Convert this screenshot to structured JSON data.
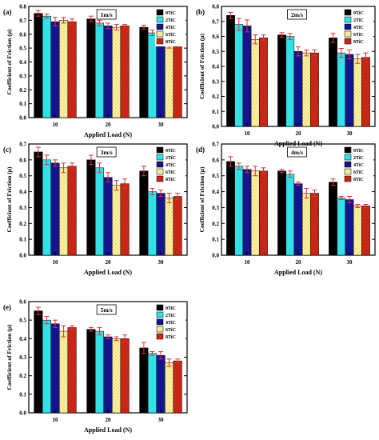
{
  "chart_data": [
    {
      "type": "bar",
      "panel_label": "(a)",
      "speed_label": "1m/s",
      "categories": [
        "10",
        "20",
        "30"
      ],
      "xlabel": "Applied Load (N)",
      "ylabel": "Coefficient of Friction (μ)",
      "ylim": [
        0.0,
        0.8
      ],
      "yticks": [
        "0.0",
        "0.1",
        "0.2",
        "0.3",
        "0.4",
        "0.5",
        "0.6",
        "0.7",
        "0.8"
      ],
      "legend_position": "top-right",
      "series": [
        {
          "name": "0TiC",
          "values": [
            0.75,
            0.71,
            0.65
          ],
          "errors": [
            0.02,
            0.02,
            0.015
          ]
        },
        {
          "name": "2TiC",
          "values": [
            0.73,
            0.68,
            0.61
          ],
          "errors": [
            0.015,
            0.02,
            0.02
          ]
        },
        {
          "name": "4TiC",
          "values": [
            0.69,
            0.66,
            0.58
          ],
          "errors": [
            0.03,
            0.02,
            0.03
          ]
        },
        {
          "name": "6TiC",
          "values": [
            0.7,
            0.65,
            0.53
          ],
          "errors": [
            0.02,
            0.02,
            0.03
          ]
        },
        {
          "name": "8TiC",
          "values": [
            0.69,
            0.66,
            0.54
          ],
          "errors": [
            0.02,
            0.01,
            0.025
          ]
        }
      ]
    },
    {
      "type": "bar",
      "panel_label": "(b)",
      "speed_label": "2m/s",
      "categories": [
        "10",
        "20",
        "30"
      ],
      "xlabel": "Applied Load (N)",
      "ylabel": "Coefficient of Friction (μ)",
      "ylim": [
        0.0,
        0.8
      ],
      "yticks": [
        "0.0",
        "0.1",
        "0.2",
        "0.3",
        "0.4",
        "0.5",
        "0.6",
        "0.7",
        "0.8"
      ],
      "legend_position": "top-right",
      "series": [
        {
          "name": "0TiC",
          "values": [
            0.74,
            0.61,
            0.59
          ],
          "errors": [
            0.02,
            0.015,
            0.03
          ]
        },
        {
          "name": "2TiC",
          "values": [
            0.68,
            0.6,
            0.49
          ],
          "errors": [
            0.04,
            0.02,
            0.03
          ]
        },
        {
          "name": "4TiC",
          "values": [
            0.67,
            0.5,
            0.48
          ],
          "errors": [
            0.04,
            0.03,
            0.03
          ]
        },
        {
          "name": "6TiC",
          "values": [
            0.58,
            0.49,
            0.45
          ],
          "errors": [
            0.03,
            0.02,
            0.03
          ]
        },
        {
          "name": "8TiC",
          "values": [
            0.59,
            0.49,
            0.46
          ],
          "errors": [
            0.02,
            0.02,
            0.03
          ]
        }
      ]
    },
    {
      "type": "bar",
      "panel_label": "(c)",
      "speed_label": "3m/s",
      "categories": [
        "10",
        "20",
        "30"
      ],
      "xlabel": "Applied Load (N)",
      "ylabel": "Coefficient of Friction (μ)",
      "ylim": [
        0.0,
        0.7
      ],
      "yticks": [
        "0.0",
        "0.1",
        "0.2",
        "0.3",
        "0.4",
        "0.5",
        "0.6",
        "0.7"
      ],
      "legend_position": "top-right",
      "series": [
        {
          "name": "0TiC",
          "values": [
            0.65,
            0.6,
            0.53
          ],
          "errors": [
            0.03,
            0.03,
            0.03
          ]
        },
        {
          "name": "2TiC",
          "values": [
            0.6,
            0.55,
            0.4
          ],
          "errors": [
            0.03,
            0.03,
            0.02
          ]
        },
        {
          "name": "4TiC",
          "values": [
            0.58,
            0.49,
            0.39
          ],
          "errors": [
            0.02,
            0.03,
            0.02
          ]
        },
        {
          "name": "6TiC",
          "values": [
            0.55,
            0.44,
            0.36
          ],
          "errors": [
            0.03,
            0.03,
            0.03
          ]
        },
        {
          "name": "8TiC",
          "values": [
            0.56,
            0.45,
            0.37
          ],
          "errors": [
            0.02,
            0.03,
            0.02
          ]
        }
      ]
    },
    {
      "type": "bar",
      "panel_label": "(d)",
      "speed_label": "4m/s",
      "categories": [
        "10",
        "20",
        "30"
      ],
      "xlabel": "Applied Load (N)",
      "ylabel": "Coefficient of Friction (μ)",
      "ylim": [
        0.0,
        0.7
      ],
      "yticks": [
        "0.0",
        "0.1",
        "0.2",
        "0.3",
        "0.4",
        "0.5",
        "0.6",
        "0.7"
      ],
      "legend_position": "top-right",
      "series": [
        {
          "name": "0TiC",
          "values": [
            0.59,
            0.53,
            0.46
          ],
          "errors": [
            0.03,
            0.01,
            0.02
          ]
        },
        {
          "name": "2TiC",
          "values": [
            0.56,
            0.51,
            0.36
          ],
          "errors": [
            0.02,
            0.02,
            0.01
          ]
        },
        {
          "name": "4TiC",
          "values": [
            0.54,
            0.45,
            0.35
          ],
          "errors": [
            0.02,
            0.01,
            0.02
          ]
        },
        {
          "name": "6TiC",
          "values": [
            0.53,
            0.39,
            0.31
          ],
          "errors": [
            0.03,
            0.03,
            0.01
          ]
        },
        {
          "name": "8TiC",
          "values": [
            0.53,
            0.39,
            0.31
          ],
          "errors": [
            0.02,
            0.02,
            0.01
          ]
        }
      ]
    },
    {
      "type": "bar",
      "panel_label": "(e)",
      "speed_label": "5m/s",
      "categories": [
        "10",
        "20",
        "30"
      ],
      "xlabel": "Applied Load (N)",
      "ylabel": "Coefficient of Friction (μ)",
      "ylim": [
        0.0,
        0.6
      ],
      "yticks": [
        "0.0",
        "0.1",
        "0.2",
        "0.3",
        "0.4",
        "0.5",
        "0.6"
      ],
      "legend_position": "top-right",
      "series": [
        {
          "name": "0TiC",
          "values": [
            0.55,
            0.45,
            0.35
          ],
          "errors": [
            0.02,
            0.01,
            0.03
          ]
        },
        {
          "name": "2TiC",
          "values": [
            0.5,
            0.44,
            0.32
          ],
          "errors": [
            0.02,
            0.02,
            0.01
          ]
        },
        {
          "name": "4TiC",
          "values": [
            0.48,
            0.41,
            0.31
          ],
          "errors": [
            0.02,
            0.01,
            0.02
          ]
        },
        {
          "name": "6TiC",
          "values": [
            0.44,
            0.4,
            0.27
          ],
          "errors": [
            0.03,
            0.01,
            0.02
          ]
        },
        {
          "name": "8TiC",
          "values": [
            0.46,
            0.4,
            0.28
          ],
          "errors": [
            0.01,
            0.02,
            0.01
          ]
        }
      ]
    }
  ],
  "style": {
    "series_colors": [
      "#000000",
      "#33e0e8",
      "#14148c",
      "#fff3a8",
      "#d42a18"
    ],
    "series_patterns": [
      "solid",
      "solid",
      "solid",
      "hatch",
      "hatch"
    ],
    "error_bar_color": "#e03030",
    "axis_color": "#000000"
  }
}
